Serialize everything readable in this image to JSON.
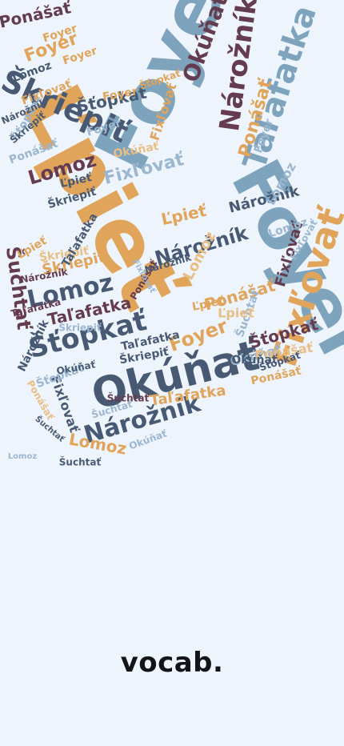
{
  "app": {
    "wordmark": "vocab."
  },
  "palette": {
    "background": "#eef4fc",
    "steel_blue": "#7ea4bd",
    "slate": "#485a73",
    "orange": "#e0a45a",
    "plum": "#653c4f",
    "light_blue": "#9bb7cf",
    "pale_orange": "#e9be85",
    "wordmark": "#121418"
  },
  "word_cloud": {
    "words": [
      "Foyer",
      "Ľpieť",
      "Foyer",
      "Taľafatka",
      "Škriepiť",
      "Fixľovať",
      "Nárožník",
      "Okúňať",
      "Lomoz",
      "Šťopkať",
      "Nárožník",
      "Ponášať",
      "Fixľovať",
      "Taľafatka",
      "Nárožník",
      "Lomoz",
      "Okúňať",
      "Šťopkať",
      "Foyer",
      "Škriepiť",
      "Šuchtať",
      "Ponášať",
      "Fixľovať",
      "Ľpieť",
      "Lomoz",
      "Foyer",
      "Ponášať",
      "Šťopkať",
      "Škriepiť",
      "Nárožník",
      "Taľafatka",
      "Okúňať",
      "Lomoz",
      "Foyer",
      "Šuchtať",
      "Fixľovať",
      "Ľpieť",
      "Ponášať",
      "Škriepiť",
      "Šťopkať",
      "Okúňať",
      "Nárožník",
      "Taľafatka",
      "Lomoz",
      "Foyer",
      "Šuchtať",
      "Ponášať",
      "Fixľovať",
      "Ľpieť",
      "Škriepiť",
      "Šťopkať",
      "Okúňať",
      "Nárožník",
      "Lomoz",
      "Foyer",
      "Taľafatka",
      "Šuchtať",
      "Ponášať",
      "Fixľovať",
      "Ľpieť",
      "Škriepiť",
      "Okúňať",
      "Lomoz",
      "Foyer",
      "Šťopkať",
      "Nárožník",
      "Ponášať",
      "Taľafatka",
      "Šuchtať",
      "Fixľovať",
      "Ľpieť",
      "Škriepiť",
      "Okúňať",
      "Lomoz",
      "Foyer",
      "Šťopkať",
      "Nárožník",
      "Ponášať",
      "Šuchtať",
      "Fixľovať"
    ]
  }
}
